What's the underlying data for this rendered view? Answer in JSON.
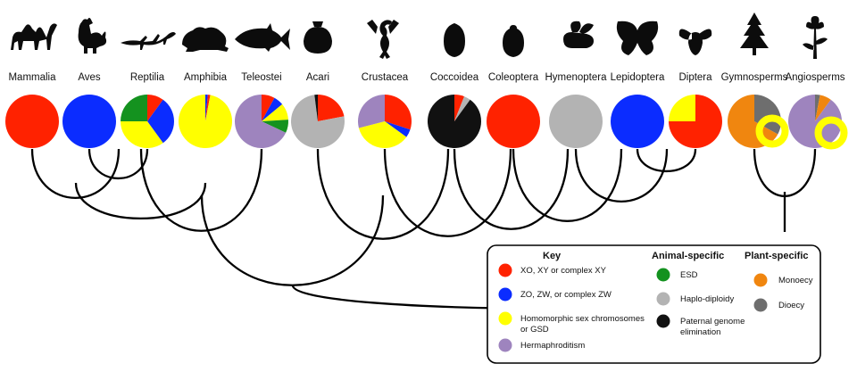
{
  "colors": {
    "xy": "#ff2200",
    "zw": "#0b2cff",
    "homomorphic": "#ffff00",
    "hermaphroditism": "#9e84be",
    "esd": "#14921f",
    "haplo": "#b3b3b3",
    "pge": "#111111",
    "monoecy": "#f0860f",
    "dioecy": "#6e6e6e",
    "tree": "#000000"
  },
  "taxa": [
    {
      "name": "Mammalia",
      "icon": "camel-icon"
    },
    {
      "name": "Aves",
      "icon": "rooster-icon"
    },
    {
      "name": "Reptilia",
      "icon": "lizard-icon"
    },
    {
      "name": "Amphibia",
      "icon": "frog-icon"
    },
    {
      "name": "Teleostei",
      "icon": "fish-icon"
    },
    {
      "name": "Acari",
      "icon": "tick-icon"
    },
    {
      "name": "Crustacea",
      "icon": "scorpion-icon"
    },
    {
      "name": "Coccoidea",
      "icon": "scale-insect-icon"
    },
    {
      "name": "Coleoptera",
      "icon": "beetle-icon"
    },
    {
      "name": "Hymenoptera",
      "icon": "bee-icon"
    },
    {
      "name": "Lepidoptera",
      "icon": "butterfly-icon"
    },
    {
      "name": "Diptera",
      "icon": "fly-icon"
    },
    {
      "name": "Gymnosperms",
      "icon": "conifer-icon"
    },
    {
      "name": "Angiosperms",
      "icon": "flower-icon"
    }
  ],
  "pies": [
    [
      {
        "cat": "xy",
        "frac": 1.0
      }
    ],
    [
      {
        "cat": "zw",
        "frac": 1.0
      }
    ],
    [
      {
        "cat": "xy",
        "frac": 0.1
      },
      {
        "cat": "zw",
        "frac": 0.3
      },
      {
        "cat": "homomorphic",
        "frac": 0.35
      },
      {
        "cat": "esd",
        "frac": 0.25
      }
    ],
    [
      {
        "cat": "zw",
        "frac": 0.015
      },
      {
        "cat": "xy",
        "frac": 0.015
      },
      {
        "cat": "homomorphic",
        "frac": 0.97
      }
    ],
    [
      {
        "cat": "xy",
        "frac": 0.08
      },
      {
        "cat": "zw",
        "frac": 0.06
      },
      {
        "cat": "homomorphic",
        "frac": 0.1
      },
      {
        "cat": "esd",
        "frac": 0.08
      },
      {
        "cat": "hermaphroditism",
        "frac": 0.68
      }
    ],
    [
      {
        "cat": "xy",
        "frac": 0.22
      },
      {
        "cat": "haplo",
        "frac": 0.76
      },
      {
        "cat": "pge",
        "frac": 0.02
      }
    ],
    [
      {
        "cat": "xy",
        "frac": 0.3
      },
      {
        "cat": "zw",
        "frac": 0.05
      },
      {
        "cat": "homomorphic",
        "frac": 0.36
      },
      {
        "cat": "hermaphroditism",
        "frac": 0.29
      }
    ],
    [
      {
        "cat": "xy",
        "frac": 0.06
      },
      {
        "cat": "haplo",
        "frac": 0.04
      },
      {
        "cat": "pge",
        "frac": 0.9
      }
    ],
    [
      {
        "cat": "xy",
        "frac": 1.0
      }
    ],
    [
      {
        "cat": "haplo",
        "frac": 1.0
      }
    ],
    [
      {
        "cat": "zw",
        "frac": 1.0
      }
    ],
    [
      {
        "cat": "xy",
        "frac": 0.75
      },
      {
        "cat": "homomorphic",
        "frac": 0.25
      }
    ],
    [
      {
        "cat": "dioecy",
        "frac": 0.33
      },
      {
        "cat": "monoecy",
        "frac": 0.67
      }
    ],
    [
      {
        "cat": "dioecy",
        "frac": 0.03
      },
      {
        "cat": "monoecy",
        "frac": 0.07
      },
      {
        "cat": "hermaphroditism",
        "frac": 0.9
      }
    ]
  ],
  "key": {
    "title": "Key",
    "animal_title": "Animal-specific",
    "plant_title": "Plant-specific",
    "general": [
      {
        "cat": "xy",
        "label_lines": [
          "XO, XY or complex XY"
        ]
      },
      {
        "cat": "zw",
        "label_lines": [
          "ZO, ZW, or complex ZW"
        ]
      },
      {
        "cat": "homomorphic",
        "label_lines": [
          "Homomorphic sex chromosomes",
          "or GSD"
        ]
      },
      {
        "cat": "hermaphroditism",
        "label_lines": [
          "Hermaphroditism"
        ]
      }
    ],
    "animal": [
      {
        "cat": "esd",
        "label_lines": [
          "ESD"
        ]
      },
      {
        "cat": "haplo",
        "label_lines": [
          "Haplo-diploidy"
        ]
      },
      {
        "cat": "pge",
        "label_lines": [
          "Paternal genome",
          "elimination"
        ]
      }
    ],
    "plant": [
      {
        "cat": "monoecy",
        "label_lines": [
          "Monoecy"
        ]
      },
      {
        "cat": "dioecy",
        "label_lines": [
          "Dioecy"
        ]
      }
    ]
  }
}
